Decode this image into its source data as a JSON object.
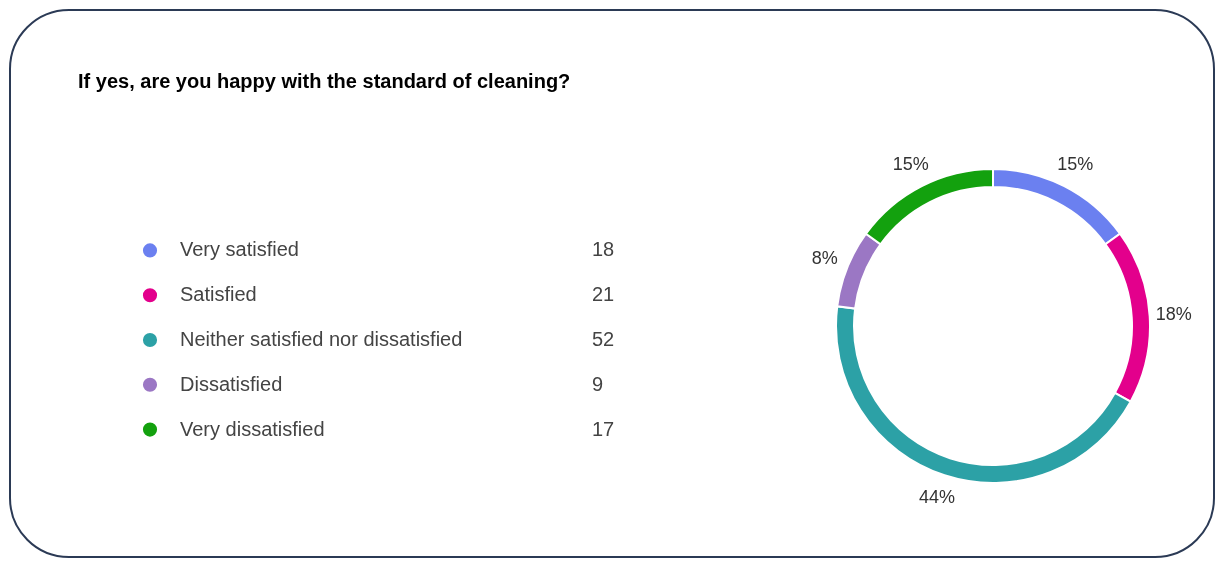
{
  "chart_data": {
    "type": "donut",
    "title": "If yes, are you happy with the standard of cleaning?",
    "categories": [
      "Very satisfied",
      "Satisfied",
      "Neither satisfied nor dissatisfied",
      "Dissatisfied",
      "Very dissatisfied"
    ],
    "values": [
      15,
      18,
      44,
      8,
      15
    ],
    "value_labels": [
      "15%",
      "18%",
      "44%",
      "8%",
      "15%"
    ],
    "annotations": [
      "18",
      "21",
      "52",
      "9",
      "17"
    ],
    "colors": [
      "#6b80f0",
      "#e3008c",
      "#2ca1a6",
      "#9b77c4",
      "#13a10e"
    ],
    "legend": "left"
  }
}
